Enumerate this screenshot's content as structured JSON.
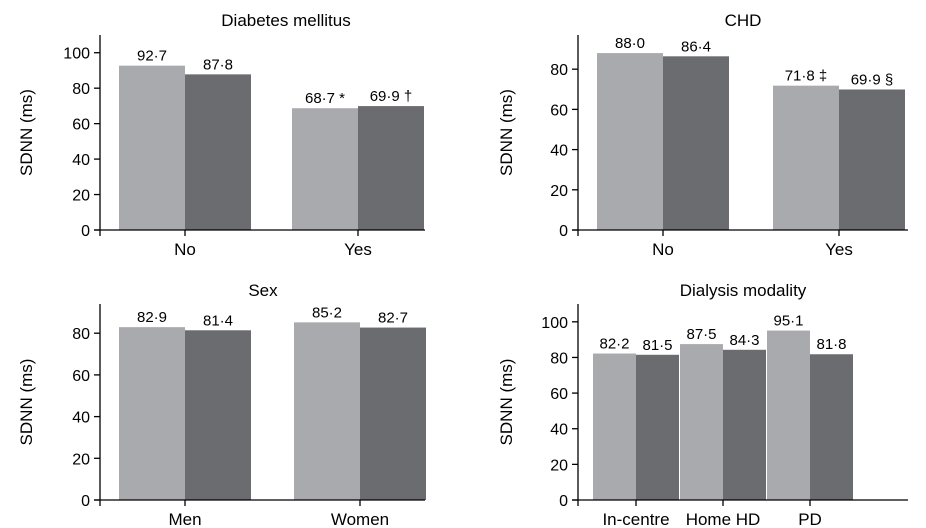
{
  "chart_data": [
    {
      "type": "bar",
      "title": "Diabetes mellitus",
      "ylabel": "SDNN (ms)",
      "categories": [
        "No",
        "Yes"
      ],
      "ylim": [
        0,
        110
      ],
      "yticks": [
        0,
        20,
        40,
        60,
        80,
        100
      ],
      "series": [
        {
          "values": [
            92.7,
            68.7
          ],
          "labels": [
            "92·7",
            "68·7 *"
          ],
          "color": "#a8aaad"
        },
        {
          "values": [
            87.8,
            69.9
          ],
          "labels": [
            "87·8",
            "69·9 †"
          ],
          "color": "#6b6c6f"
        }
      ]
    },
    {
      "type": "bar",
      "title": "CHD",
      "ylabel": "SDNN (ms)",
      "categories": [
        "No",
        "Yes"
      ],
      "ylim": [
        0,
        97
      ],
      "yticks": [
        0,
        20,
        40,
        60,
        80
      ],
      "series": [
        {
          "values": [
            88.0,
            71.8
          ],
          "labels": [
            "88·0",
            "71·8 ‡"
          ],
          "color": "#a8aaad"
        },
        {
          "values": [
            86.4,
            69.9
          ],
          "labels": [
            "86·4",
            "69·9 §"
          ],
          "color": "#6b6c6f"
        }
      ]
    },
    {
      "type": "bar",
      "title": "Sex",
      "ylabel": "SDNN (ms)",
      "categories": [
        "Men",
        "Women"
      ],
      "ylim": [
        0,
        94
      ],
      "yticks": [
        0,
        20,
        40,
        60,
        80
      ],
      "series": [
        {
          "values": [
            82.9,
            85.2
          ],
          "labels": [
            "82·9",
            "85·2"
          ],
          "color": "#a8aaad"
        },
        {
          "values": [
            81.4,
            82.7
          ],
          "labels": [
            "81·4",
            "82·7"
          ],
          "color": "#6b6c6f"
        }
      ]
    },
    {
      "type": "bar",
      "title": "Dialysis modality",
      "ylabel": "SDNN (ms)",
      "categories": [
        "In-centre",
        "Home HD",
        "PD"
      ],
      "ylim": [
        0,
        110
      ],
      "yticks": [
        0,
        20,
        40,
        60,
        80,
        100
      ],
      "series": [
        {
          "values": [
            82.2,
            87.5,
            95.1
          ],
          "labels": [
            "82·2",
            "87·5",
            "95·1"
          ],
          "color": "#a8aaad"
        },
        {
          "values": [
            81.5,
            84.3,
            81.8
          ],
          "labels": [
            "81·5",
            "84·3",
            "81·8"
          ],
          "color": "#6b6c6f"
        }
      ]
    }
  ]
}
